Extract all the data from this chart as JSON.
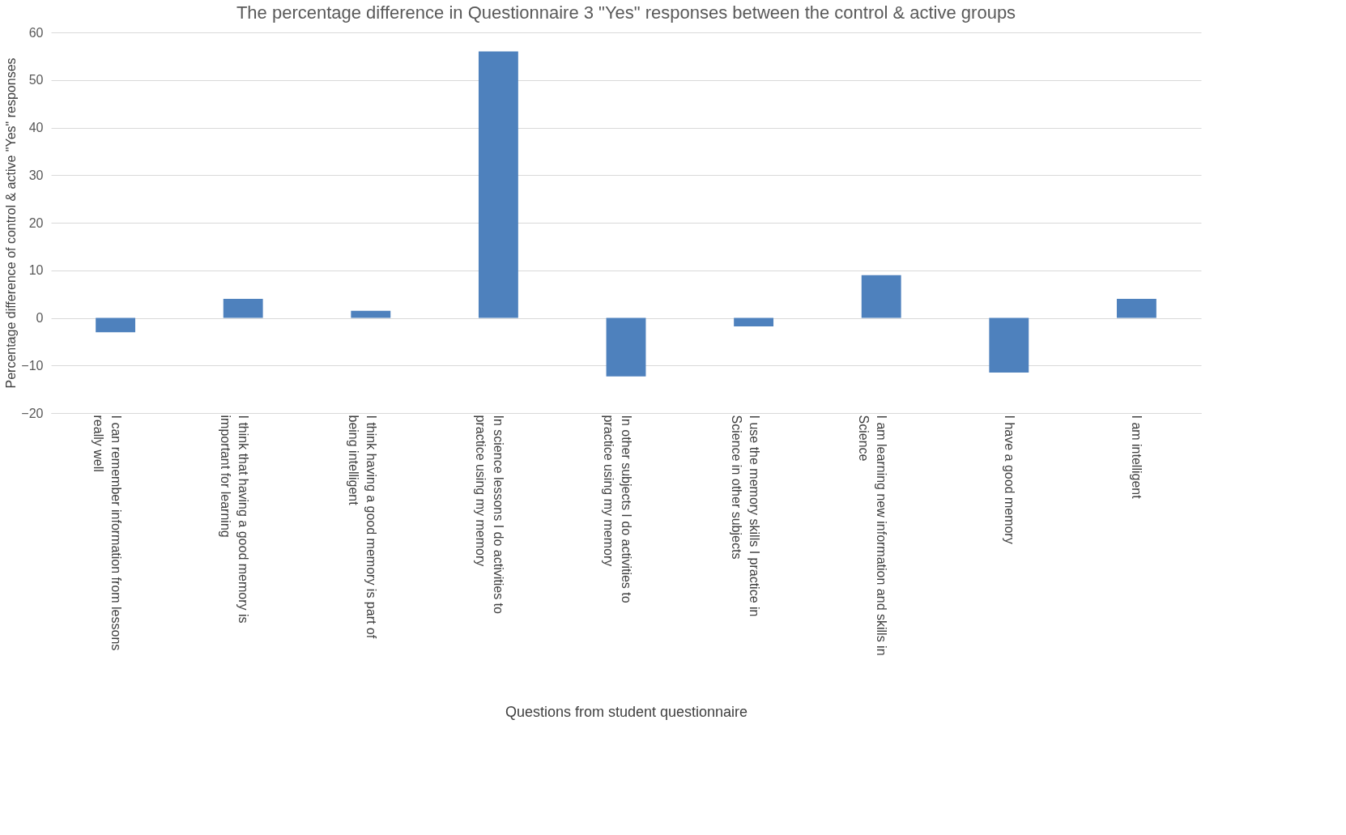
{
  "chart_data": {
    "type": "bar",
    "title": "The percentage difference in Questionnaire 3 \"Yes\" responses between the control & active groups",
    "xlabel": "Questions from student questionnaire",
    "ylabel": "Percentage difference of control & active \"Yes\" responses",
    "categories": [
      "I can remember information from lessons really well",
      "I think that having a good memory is important for learning",
      "I think having a good memory is part of being intelligent",
      null,
      "In science lessons I do activities to practice using my memory",
      "In other subjects I  do activities to practice using my memory",
      "I use the memory skills I practice in Science in other subjects",
      "I am learning new information and skills in Science",
      "I have a good memory",
      "I am intelligent"
    ],
    "values": [
      -3,
      4,
      1.5,
      null,
      56,
      -12.3,
      -1.8,
      9,
      -11.5,
      4
    ],
    "color": "#4e81bd",
    "ylim": [
      -20,
      60
    ],
    "yticks": [
      -20,
      -10,
      0,
      10,
      20,
      30,
      40,
      50,
      60
    ],
    "grid": "y"
  }
}
